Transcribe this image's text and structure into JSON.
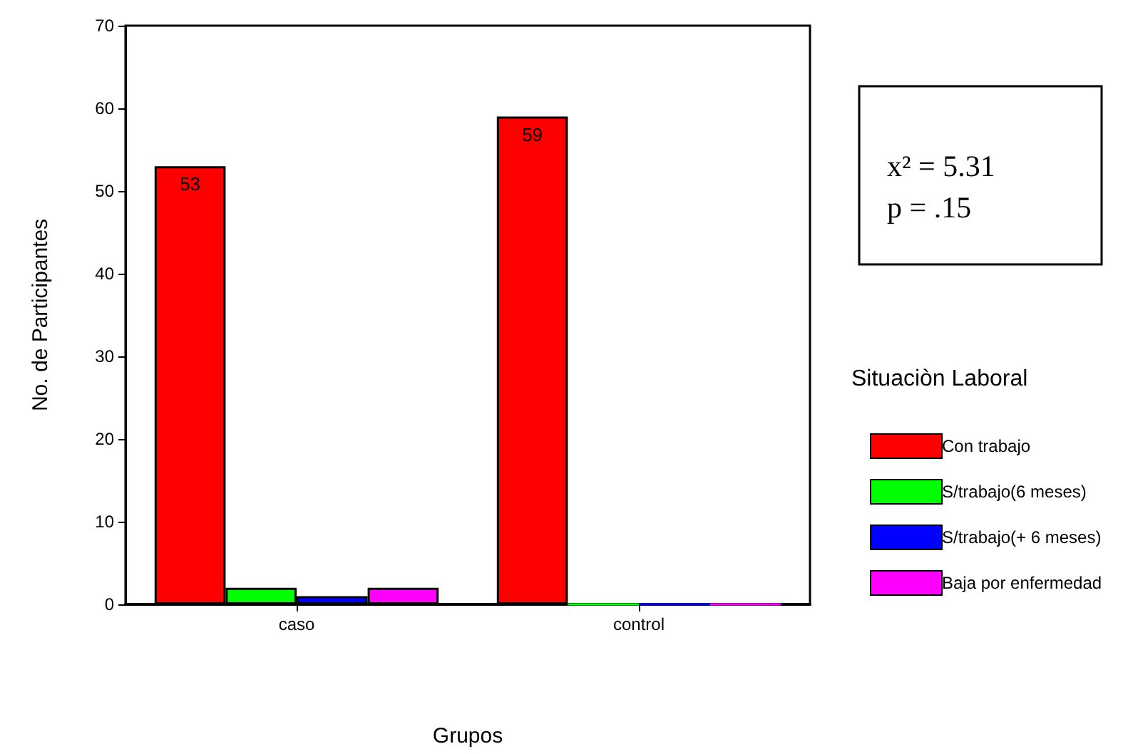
{
  "chart_data": {
    "type": "bar",
    "xlabel": "Grupos",
    "ylabel": "No. de Participantes",
    "legend_title": "Situaciòn Laboral",
    "categories": [
      "caso",
      "control"
    ],
    "series": [
      {
        "name": "Con trabajo",
        "color": "#ff0000",
        "values": [
          53,
          59
        ],
        "value_labels": [
          "53",
          "59"
        ]
      },
      {
        "name": "S/trabajo(6 meses)",
        "color": "#00ff00",
        "values": [
          2,
          0
        ]
      },
      {
        "name": "S/trabajo(+ 6 meses)",
        "color": "#0000ff",
        "values": [
          1,
          0
        ]
      },
      {
        "name": "Baja por enfermedad",
        "color": "#ff00ff",
        "values": [
          2,
          0
        ]
      }
    ],
    "ylim": [
      0,
      70
    ],
    "yticks": [
      0,
      10,
      20,
      30,
      40,
      50,
      60,
      70
    ],
    "grid": false,
    "legend": "right",
    "annotations": [
      "x² = 5.31",
      "p = .15"
    ]
  }
}
